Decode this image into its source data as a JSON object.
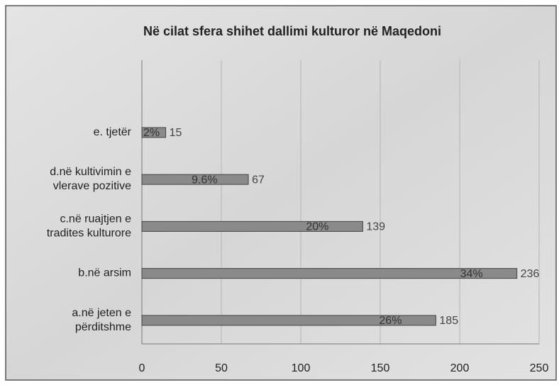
{
  "chart_data": {
    "type": "hbar",
    "title": "Në cilat sfera  shihet dallimi kulturor në Maqedoni",
    "categories": [
      [
        "a.në jeten e",
        "përditshme"
      ],
      [
        "b.në arsim"
      ],
      [
        "c.në ruajtjen e",
        "tradites kulturore"
      ],
      [
        "d.në kultivimin e",
        "vlerave pozitive"
      ],
      [
        "e. tjetër"
      ]
    ],
    "values": [
      185,
      236,
      139,
      67,
      15
    ],
    "share_labels": [
      "26%",
      "34%",
      "20%",
      "9.6%",
      "2%"
    ],
    "color": "#8a8a8a",
    "xlim": [
      0,
      250
    ],
    "xticks": [
      0,
      50,
      100,
      150,
      200,
      250
    ],
    "grid": true
  }
}
